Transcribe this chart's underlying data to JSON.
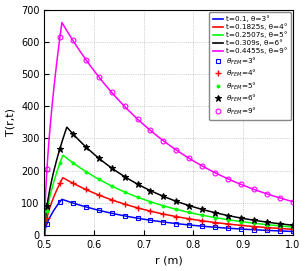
{
  "title": "",
  "xlabel": "r (m)",
  "ylabel": "T(r,t)",
  "xlim": [
    0.5,
    1.0
  ],
  "ylim": [
    0,
    700
  ],
  "yticks": [
    0,
    100,
    200,
    300,
    400,
    500,
    600,
    700
  ],
  "xticks": [
    0.5,
    0.6,
    0.7,
    0.8,
    0.9,
    1.0
  ],
  "curves": [
    {
      "label": "t=0.1, θ=3°",
      "color": "blue",
      "peak_r": 0.535,
      "peak_v": 111,
      "decay": 2.3
    },
    {
      "label": "t=0.1825s, θ=4°",
      "color": "red",
      "peak_r": 0.537,
      "peak_v": 178,
      "decay": 2.3
    },
    {
      "label": "t=0.2507s, θ=5°",
      "color": "lime",
      "peak_r": 0.537,
      "peak_v": 248,
      "decay": 2.3
    },
    {
      "label": "t=0.309s, θ=6°",
      "color": "black",
      "peak_r": 0.545,
      "peak_v": 335,
      "decay": 2.4
    },
    {
      "label": "t=0.4455s, θ=9°",
      "color": "magenta",
      "peak_r": 0.535,
      "peak_v": 660,
      "decay": 1.85
    }
  ],
  "fem_markers": [
    {
      "label": "θ_FEM=3°",
      "color": "blue",
      "marker": "s",
      "mfc": "none",
      "ms": 3.5,
      "mew": 0.8
    },
    {
      "label": "θ_FEM=4°",
      "color": "red",
      "marker": "+",
      "mfc": "red",
      "ms": 4.5,
      "mew": 1.0
    },
    {
      "label": "θ_FEM=5°",
      "color": "lime",
      "marker": ".",
      "mfc": "lime",
      "ms": 4.0,
      "mew": 0.8
    },
    {
      "label": "θ_FEM=6°",
      "color": "black",
      "marker": "*",
      "mfc": "black",
      "ms": 4.5,
      "mew": 0.8
    },
    {
      "label": "θ_FEM=9°",
      "color": "magenta",
      "marker": "o",
      "mfc": "none",
      "ms": 3.5,
      "mew": 0.8
    }
  ],
  "r_inner": 0.5,
  "r_outer": 1.0,
  "rise_exp": 0.6,
  "n_markers": 20
}
